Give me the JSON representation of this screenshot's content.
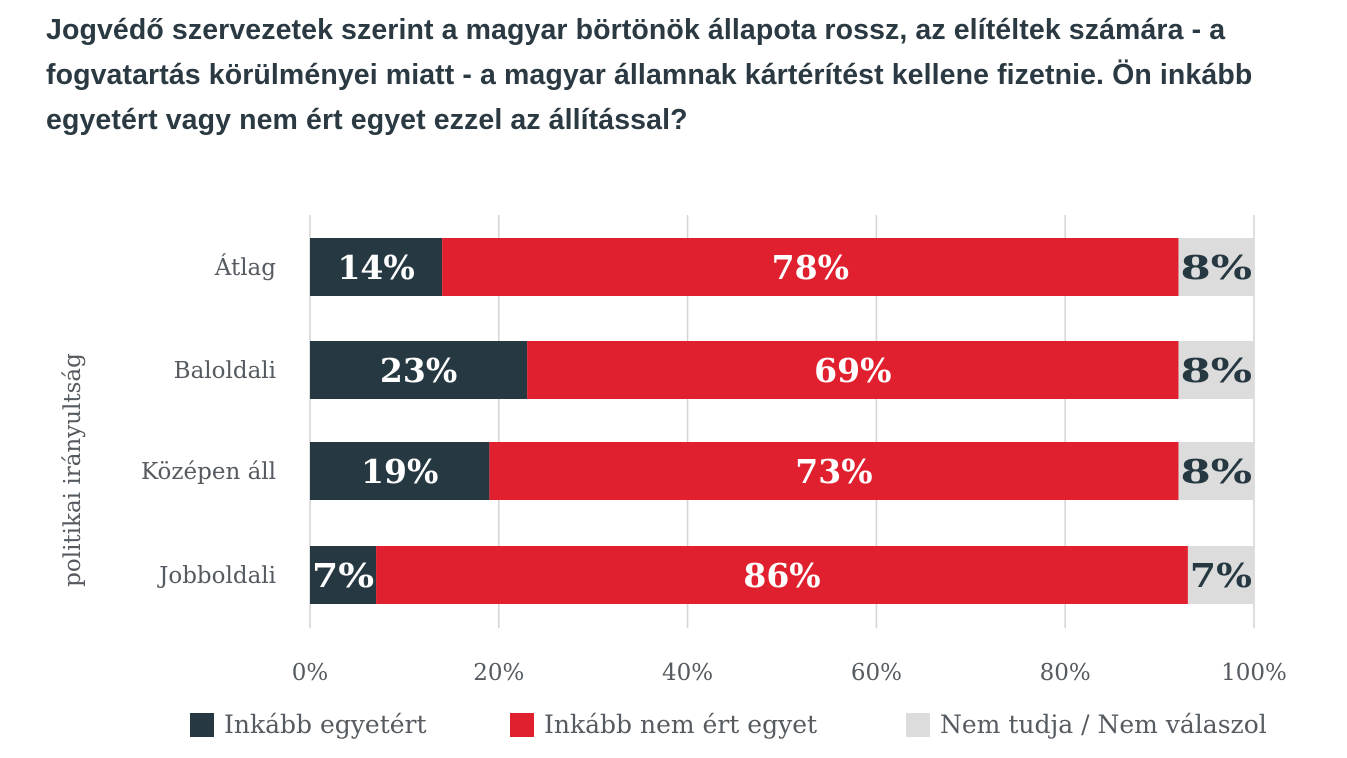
{
  "title": "Jogvédő szervezetek szerint a magyar börtönök állapota rossz, az elítéltek számára - a fogvatartás körülményei miatt - a magyar államnak kártérítést kellene fizetnie. Ön inkább egyetért vagy nem ért egyet ezzel az állítással?",
  "colors": {
    "agree": "#263841",
    "disagree": "#e0202e",
    "unknown": "#dcdcdc",
    "grid": "#d4d4d4",
    "axis_text": "#555b60"
  },
  "legend": [
    {
      "label": "Inkább egyetért",
      "color": "#263841"
    },
    {
      "label": "Inkább nem ért egyet",
      "color": "#e0202e"
    },
    {
      "label": "Nem tudja / Nem válaszol",
      "color": "#dcdcdc"
    }
  ],
  "chart_data": {
    "type": "bar",
    "orientation": "horizontal",
    "stacked": true,
    "title": "Jogvédő szervezetek szerint a magyar börtönök állapota rossz, az elítéltek számára - a fogvatartás körülményei miatt - a magyar államnak kártérítést kellene fizetnie. Ön inkább egyetért vagy nem ért egyet ezzel az állítással?",
    "ylabel": "politikai irányultság",
    "xlabel": "",
    "categories": [
      "Átlag",
      "Baloldali",
      "Középen áll",
      "Jobboldali"
    ],
    "series": [
      {
        "name": "Inkább egyetért",
        "values": [
          14,
          23,
          19,
          7
        ],
        "labels": [
          "14%",
          "23%",
          "19%",
          "7%"
        ]
      },
      {
        "name": "Inkább nem ért egyet",
        "values": [
          78,
          69,
          73,
          86
        ],
        "labels": [
          "78%",
          "69%",
          "73%",
          "86%"
        ]
      },
      {
        "name": "Nem tudja / Nem válaszol",
        "values": [
          8,
          8,
          8,
          7
        ],
        "labels": [
          "8%",
          "8%",
          "8%",
          "7%"
        ]
      }
    ],
    "xlim": [
      0,
      100
    ],
    "xticks": [
      "0%",
      "20%",
      "40%",
      "60%",
      "80%",
      "100%"
    ],
    "grid": true,
    "legend_position": "bottom"
  }
}
